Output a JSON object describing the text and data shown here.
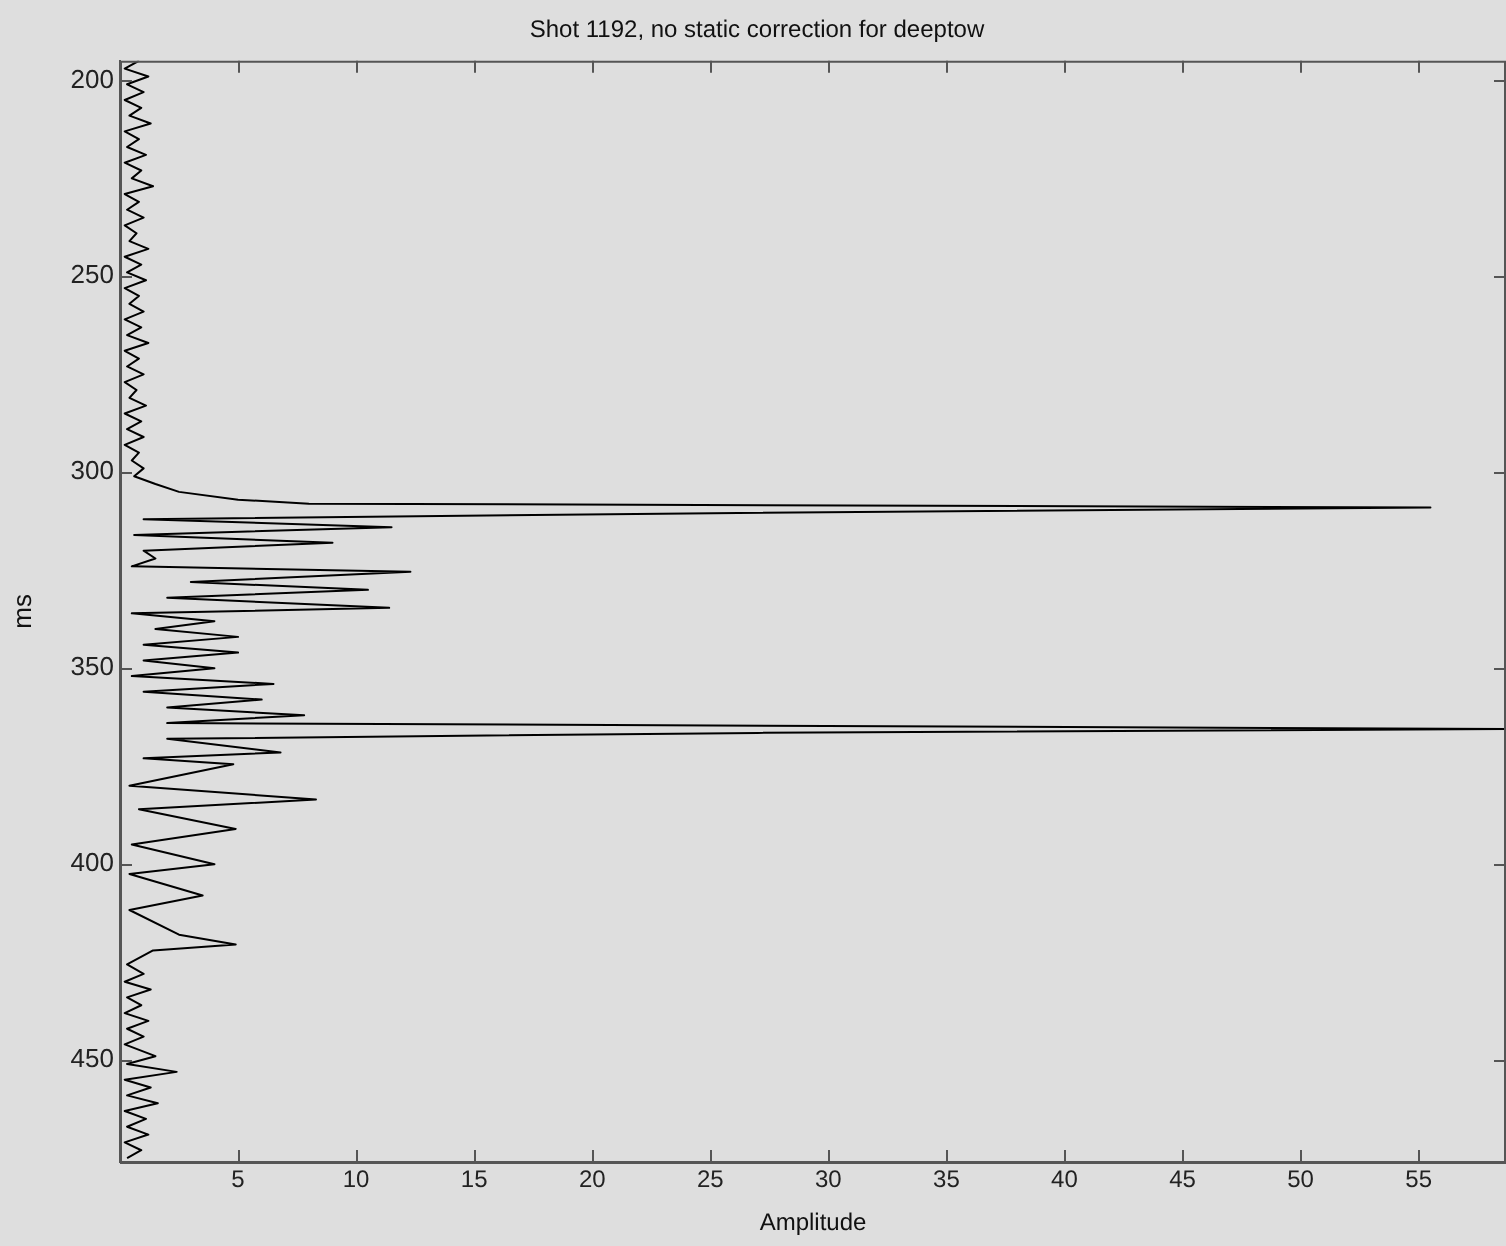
{
  "chart_data": {
    "type": "line",
    "title": "Shot 1192, no static correction for deeptow",
    "xlabel": "Amplitude",
    "ylabel": "ms",
    "xlim": [
      0,
      58.7
    ],
    "xticks": [
      5,
      10,
      15,
      20,
      25,
      30,
      35,
      40,
      45,
      50,
      55
    ],
    "ylim": [
      476,
      195
    ],
    "yticks": [
      200,
      250,
      300,
      350,
      400,
      450
    ],
    "grid": false,
    "legend": false,
    "series": [
      {
        "color": "#000000",
        "x": [
          0.8,
          0.2,
          1.2,
          0.3,
          1.0,
          0.2,
          0.9,
          0.4,
          1.3,
          0.2,
          0.8,
          0.3,
          1.1,
          0.2,
          0.9,
          0.5,
          1.4,
          0.2,
          0.8,
          0.3,
          1.0,
          0.2,
          0.7,
          0.4,
          1.2,
          0.2,
          0.9,
          0.3,
          1.1,
          0.2,
          0.8,
          0.4,
          1.0,
          0.2,
          0.9,
          0.3,
          1.2,
          0.2,
          0.8,
          0.3,
          1.0,
          0.2,
          0.7,
          0.4,
          1.1,
          0.2,
          0.9,
          0.3,
          1.0,
          0.2,
          0.8,
          0.5,
          1.0,
          0.6,
          1.5,
          2.5,
          5,
          8,
          55.5,
          24,
          1,
          11.5,
          0.6,
          9,
          1,
          1.5,
          0.5,
          12.3,
          3,
          10.5,
          2,
          11.4,
          0.5,
          4,
          1.5,
          5,
          1,
          5,
          1,
          4,
          0.5,
          6.5,
          1,
          6,
          2,
          7.8,
          2,
          58.7,
          27,
          2,
          6.8,
          1,
          4.8,
          0.4,
          8.3,
          0.8,
          4.9,
          0.5,
          4,
          0.4,
          3.5,
          0.4,
          2.5,
          4.9,
          1.4,
          0.3,
          1.0,
          0.2,
          1.3,
          0.3,
          0.9,
          0.2,
          1.2,
          0.3,
          1.0,
          0.2,
          1.5,
          0.3,
          2.4,
          0.2,
          1.3,
          0.3,
          1.6,
          0.2,
          1.1,
          0.3,
          1.2,
          0.2,
          0.9,
          0.3
        ],
        "values": [
          195,
          197,
          199,
          201,
          203,
          205,
          207,
          209,
          211,
          213,
          215,
          217,
          219,
          221,
          223,
          225,
          227,
          229,
          231,
          233,
          235,
          237,
          239,
          241,
          243,
          245,
          247,
          249,
          251,
          253,
          255,
          257,
          259,
          261,
          263,
          265,
          267,
          269,
          271,
          273,
          275,
          277,
          279,
          281,
          283,
          285,
          287,
          289,
          291,
          293,
          295,
          297,
          299,
          301,
          303,
          305,
          307,
          308,
          309,
          310.5,
          312,
          314,
          316,
          318,
          320,
          322,
          324,
          325.4,
          328,
          330,
          332,
          334.6,
          336,
          338,
          340,
          342,
          344,
          346,
          348,
          350,
          352,
          354,
          356,
          358,
          360,
          362,
          364,
          365.5,
          366.5,
          368,
          371.5,
          373,
          374.5,
          380,
          383.5,
          386,
          391,
          395,
          400,
          402.5,
          408,
          411.7,
          418,
          420.5,
          422,
          425.6,
          428,
          430,
          432,
          434,
          436,
          438,
          440,
          442,
          444,
          446,
          449,
          451,
          453,
          455,
          457,
          459,
          461,
          463,
          465,
          467,
          469,
          471,
          473,
          475
        ]
      }
    ]
  }
}
